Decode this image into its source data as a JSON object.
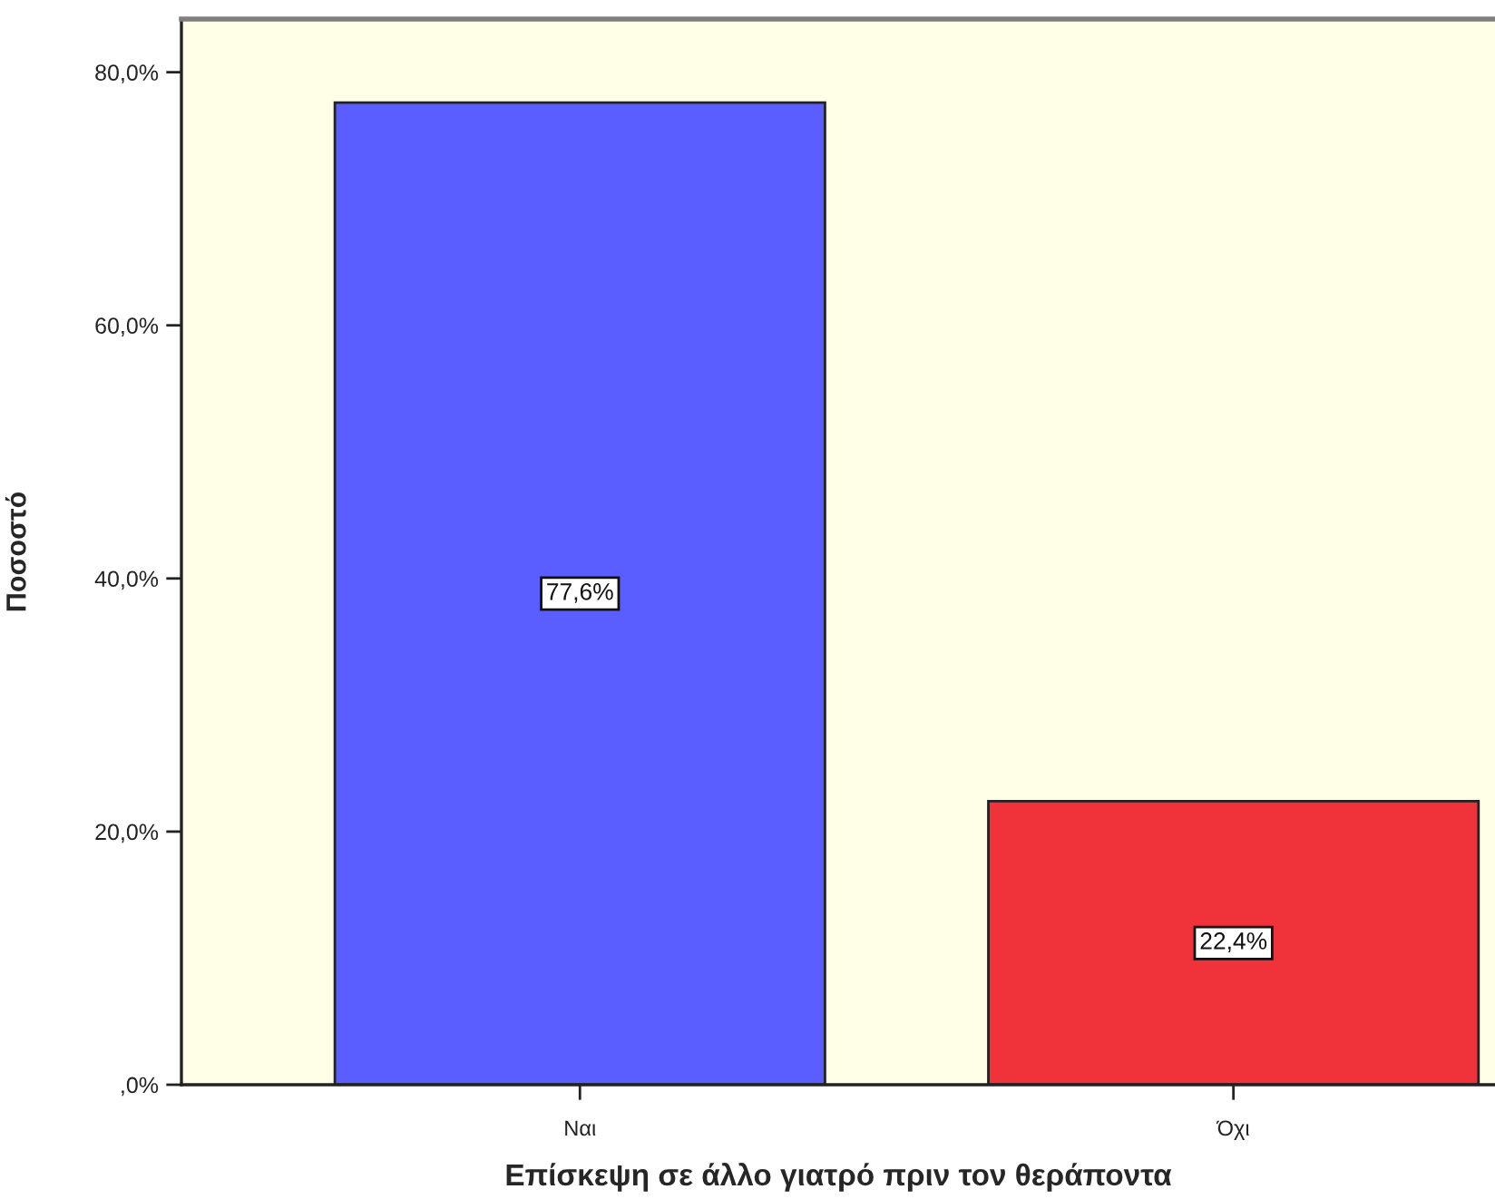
{
  "chart_data": {
    "type": "bar",
    "xlabel": "Επίσκεψη σε άλλο γιατρό πριν τον θεράποντα",
    "ylabel": "Ποσοστό",
    "categories": [
      "Ναι",
      "Όχι"
    ],
    "values": [
      77.6,
      22.4
    ],
    "colors": [
      "#5b5eff",
      "#f0333b"
    ],
    "value_labels": [
      "77,6%",
      "22,4%"
    ],
    "ylim": [
      0,
      84.2
    ],
    "yticks": [
      {
        "value": 0,
        "label": ",0%"
      },
      {
        "value": 20,
        "label": "20,0%"
      },
      {
        "value": 40,
        "label": "40,0%"
      },
      {
        "value": 60,
        "label": "60,0%"
      },
      {
        "value": 80,
        "label": "80,0%"
      }
    ]
  }
}
